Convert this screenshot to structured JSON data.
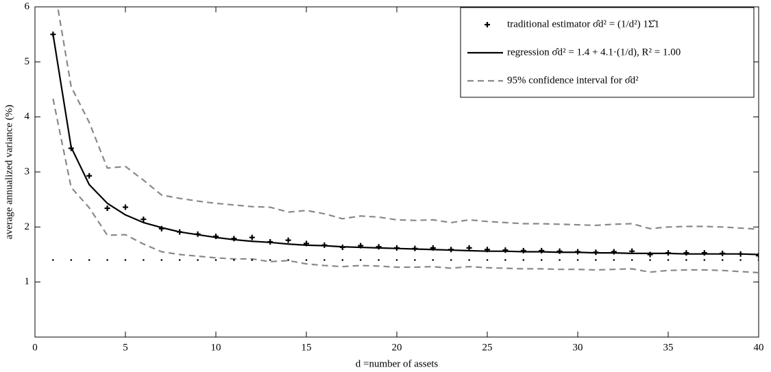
{
  "chart_data": {
    "type": "line",
    "xlabel": "d =number of assets",
    "ylabel": "average annualized variance (%)",
    "x": [
      1,
      2,
      3,
      4,
      5,
      6,
      7,
      8,
      9,
      10,
      11,
      12,
      13,
      14,
      15,
      16,
      17,
      18,
      19,
      20,
      21,
      22,
      23,
      24,
      25,
      26,
      27,
      28,
      29,
      30,
      31,
      32,
      33,
      34,
      35,
      36,
      37,
      38,
      39,
      40
    ],
    "xlim": [
      0,
      40
    ],
    "xticks": [
      0,
      5,
      10,
      15,
      20,
      25,
      30,
      35,
      40
    ],
    "ylim": [
      0,
      6
    ],
    "yticks": [
      1,
      2,
      3,
      4,
      5,
      6
    ],
    "legend": "upper right",
    "series": [
      {
        "name": "traditional estimator σ̂d² = (1/d²) 1Σ̂1",
        "color": "#000000",
        "style": "plus",
        "values": [
          5.5,
          3.43,
          2.93,
          2.34,
          2.36,
          2.14,
          1.97,
          1.91,
          1.87,
          1.83,
          1.79,
          1.81,
          1.73,
          1.76,
          1.7,
          1.67,
          1.63,
          1.66,
          1.64,
          1.62,
          1.61,
          1.62,
          1.59,
          1.62,
          1.59,
          1.58,
          1.57,
          1.57,
          1.56,
          1.55,
          1.54,
          1.55,
          1.56,
          1.5,
          1.53,
          1.53,
          1.53,
          1.52,
          1.51,
          1.48
        ]
      },
      {
        "name": "regression σ̂d² = 1.4 + 4.1·(1/d), R² = 1.00",
        "color": "#000000",
        "style": "solid",
        "values": [
          5.5,
          3.45,
          2.77,
          2.43,
          2.22,
          2.08,
          1.99,
          1.91,
          1.86,
          1.81,
          1.77,
          1.74,
          1.72,
          1.69,
          1.67,
          1.66,
          1.64,
          1.63,
          1.62,
          1.61,
          1.6,
          1.59,
          1.58,
          1.57,
          1.56,
          1.56,
          1.55,
          1.55,
          1.54,
          1.54,
          1.53,
          1.53,
          1.52,
          1.52,
          1.52,
          1.51,
          1.51,
          1.51,
          1.51,
          1.5
        ]
      },
      {
        "name": "95% confidence interval for σ̂d²",
        "color": "#888888",
        "style": "dashed",
        "values": [
          6.5,
          4.55,
          3.9,
          3.07,
          3.1,
          2.85,
          2.58,
          2.52,
          2.47,
          2.43,
          2.4,
          2.37,
          2.36,
          2.27,
          2.3,
          2.24,
          2.15,
          2.2,
          2.18,
          2.13,
          2.12,
          2.13,
          2.08,
          2.13,
          2.1,
          2.08,
          2.06,
          2.06,
          2.05,
          2.04,
          2.03,
          2.05,
          2.06,
          1.97,
          2.0,
          2.01,
          2.01,
          2.0,
          1.98,
          1.96
        ]
      },
      {
        "color": "#888888",
        "style": "dashed",
        "values": [
          4.33,
          2.72,
          2.35,
          1.85,
          1.86,
          1.69,
          1.55,
          1.5,
          1.47,
          1.44,
          1.42,
          1.42,
          1.37,
          1.39,
          1.33,
          1.3,
          1.28,
          1.3,
          1.29,
          1.27,
          1.27,
          1.28,
          1.25,
          1.28,
          1.26,
          1.25,
          1.24,
          1.24,
          1.23,
          1.23,
          1.22,
          1.23,
          1.24,
          1.18,
          1.21,
          1.22,
          1.22,
          1.21,
          1.19,
          1.17
        ]
      },
      {
        "color": "#000000",
        "style": "dots",
        "values": [
          1.4,
          1.4,
          1.4,
          1.4,
          1.4,
          1.4,
          1.4,
          1.4,
          1.4,
          1.4,
          1.4,
          1.4,
          1.4,
          1.4,
          1.4,
          1.4,
          1.4,
          1.4,
          1.4,
          1.4,
          1.4,
          1.4,
          1.4,
          1.4,
          1.4,
          1.4,
          1.4,
          1.4,
          1.4,
          1.4,
          1.4,
          1.4,
          1.4,
          1.4,
          1.4,
          1.4,
          1.4,
          1.4,
          1.4,
          1.4
        ]
      }
    ]
  }
}
